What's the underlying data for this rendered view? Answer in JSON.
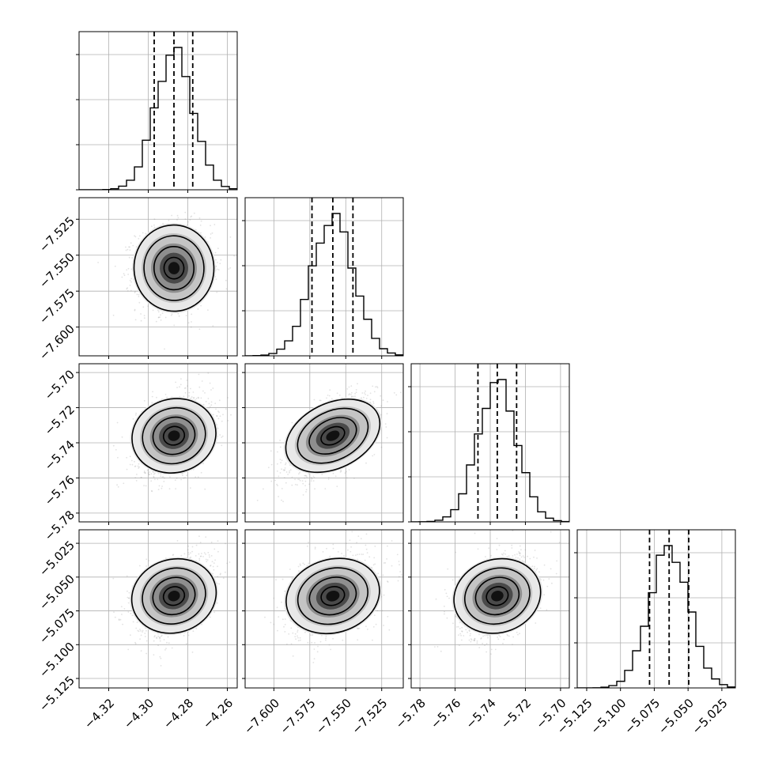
{
  "chart_data": {
    "type": "corner",
    "title": "",
    "grid": true,
    "parameters": [
      {
        "name": "",
        "center": -4.287,
        "sigma": 0.0095,
        "q16": -4.297,
        "q50": -4.287,
        "q84": -4.2775,
        "range": [
          -4.335,
          -4.255
        ],
        "ticks": [
          -4.32,
          -4.3,
          -4.28,
          -4.26
        ],
        "ticklabels": [
          "−4.32",
          "−4.30",
          "−4.28",
          "−4.26"
        ]
      },
      {
        "name": "",
        "center": -7.559,
        "sigma": 0.0145,
        "q16": -7.5735,
        "q50": -7.559,
        "q84": -7.545,
        "range": [
          -7.62,
          -7.51
        ],
        "ticks": [
          -7.6,
          -7.575,
          -7.55,
          -7.525
        ],
        "ticklabels": [
          "−7.600",
          "−7.575",
          "−7.550",
          "−7.525"
        ]
      },
      {
        "name": "",
        "center": -5.736,
        "sigma": 0.011,
        "q16": -5.747,
        "q50": -5.736,
        "q84": -5.725,
        "range": [
          -5.785,
          -5.695
        ],
        "ticks": [
          -5.78,
          -5.76,
          -5.74,
          -5.72,
          -5.7
        ],
        "ticklabels": [
          "−5.78",
          "−5.76",
          "−5.74",
          "−5.72",
          "−5.70"
        ]
      },
      {
        "name": "",
        "center": -5.064,
        "sigma": 0.0145,
        "q16": -5.0785,
        "q50": -5.064,
        "q84": -5.0495,
        "range": [
          -5.132,
          -5.015
        ],
        "ticks": [
          -5.125,
          -5.1,
          -5.075,
          -5.05,
          -5.025
        ],
        "ticklabels": [
          "−5.125",
          "−5.100",
          "−5.075",
          "−5.050",
          "−5.025"
        ]
      }
    ],
    "correlations": {
      "1-0": 0.05,
      "2-0": 0.3,
      "2-1": 0.6,
      "3-0": 0.35,
      "3-1": 0.35,
      "3-2": 0.35
    },
    "contour_levels_sigma": [
      0.5,
      1.0,
      1.5,
      2.0
    ],
    "quantiles": [
      0.16,
      0.5,
      0.84
    ],
    "histogram_bins": 20
  }
}
